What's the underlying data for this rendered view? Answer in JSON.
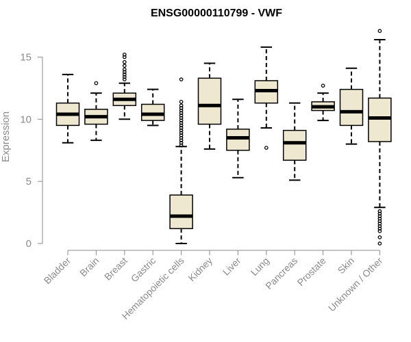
{
  "chart_data": {
    "type": "box",
    "title": "ENSG00000110799 - VWF",
    "xlabel": "",
    "ylabel": "Expression",
    "ylim": [
      0,
      17.5
    ],
    "yticks": [
      0,
      5,
      10,
      15
    ],
    "box_fill": "#efe8d0",
    "axis_color": "#8a8a8a",
    "categories": [
      {
        "name": "Bladder",
        "min": 8.1,
        "q1": 9.5,
        "median": 10.4,
        "q3": 11.3,
        "max": 13.6,
        "outliers": []
      },
      {
        "name": "Brain",
        "min": 8.3,
        "q1": 9.6,
        "median": 10.2,
        "q3": 10.8,
        "max": 12.1,
        "outliers": [
          12.9
        ]
      },
      {
        "name": "Breast",
        "min": 10.0,
        "q1": 11.1,
        "median": 11.6,
        "q3": 12.1,
        "max": 12.9,
        "outliers": [
          13.2,
          13.4,
          13.6,
          13.8,
          14.0,
          14.3,
          14.6,
          15.0,
          15.2
        ]
      },
      {
        "name": "Gastric",
        "min": 9.5,
        "q1": 9.9,
        "median": 10.4,
        "q3": 11.2,
        "max": 12.4,
        "outliers": []
      },
      {
        "name": "Hematopoietic cells",
        "min": 0.0,
        "q1": 1.2,
        "median": 2.2,
        "q3": 3.9,
        "max": 7.8,
        "outliers": [
          7.9,
          8.1,
          8.3,
          8.5,
          8.7,
          8.9,
          9.1,
          9.3,
          9.5,
          9.7,
          9.9,
          10.1,
          10.3,
          10.5,
          10.7,
          10.9,
          11.1,
          11.4,
          13.2
        ]
      },
      {
        "name": "Kidney",
        "min": 7.6,
        "q1": 9.6,
        "median": 11.1,
        "q3": 13.3,
        "max": 14.5,
        "outliers": []
      },
      {
        "name": "Liver",
        "min": 5.3,
        "q1": 7.5,
        "median": 8.5,
        "q3": 9.2,
        "max": 11.6,
        "outliers": []
      },
      {
        "name": "Lung",
        "min": 9.3,
        "q1": 11.3,
        "median": 12.3,
        "q3": 13.1,
        "max": 15.8,
        "outliers": [
          7.7
        ]
      },
      {
        "name": "Pancreas",
        "min": 5.1,
        "q1": 6.7,
        "median": 8.1,
        "q3": 9.1,
        "max": 11.3,
        "outliers": []
      },
      {
        "name": "Prostate",
        "min": 9.9,
        "q1": 10.7,
        "median": 11.0,
        "q3": 11.4,
        "max": 12.1,
        "outliers": [
          12.7
        ]
      },
      {
        "name": "Skin",
        "min": 8.0,
        "q1": 9.5,
        "median": 10.6,
        "q3": 12.4,
        "max": 14.1,
        "outliers": []
      },
      {
        "name": "Unknown / Other",
        "min": 2.9,
        "q1": 8.2,
        "median": 10.1,
        "q3": 11.7,
        "max": 16.4,
        "outliers": [
          17.1,
          2.6,
          2.4,
          2.2,
          2.0,
          1.8,
          1.6,
          1.4,
          1.2,
          1.0,
          0.5,
          0.0
        ]
      }
    ]
  }
}
